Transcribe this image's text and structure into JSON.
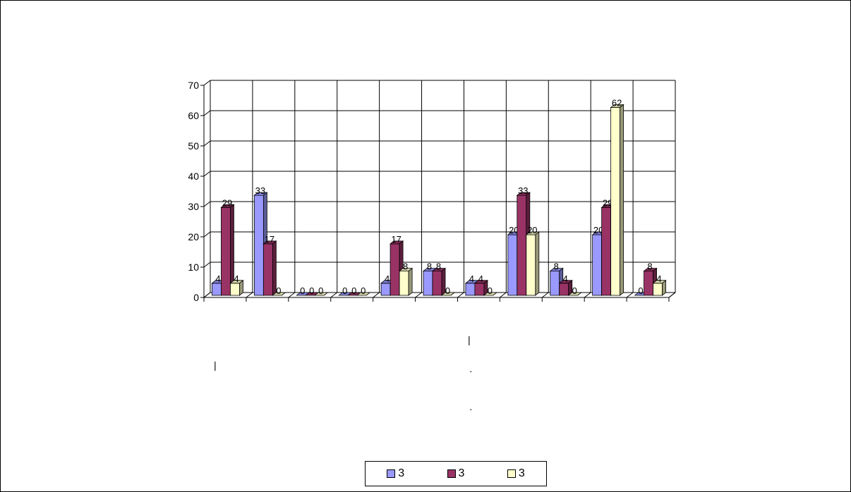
{
  "chart_data": {
    "type": "bar",
    "style": "3d-clustered-column",
    "categories": [
      "",
      "",
      "",
      "",
      "",
      "",
      "",
      "",
      "",
      "",
      ""
    ],
    "series": [
      {
        "name": "3",
        "color": "#9999ff",
        "values": [
          4,
          33,
          0,
          0,
          4,
          8,
          4,
          20,
          8,
          20,
          0
        ]
      },
      {
        "name": "3",
        "color": "#993366",
        "values": [
          29,
          17,
          0,
          0,
          17,
          8,
          4,
          33,
          4,
          29,
          8
        ]
      },
      {
        "name": "3",
        "color": "#ffffcc",
        "values": [
          4,
          0,
          0,
          0,
          8,
          0,
          0,
          20,
          0,
          62,
          4
        ]
      }
    ],
    "ylim": [
      0,
      70
    ],
    "yticks": [
      "0",
      "10",
      "20",
      "30",
      "40",
      "50",
      "60",
      "70"
    ],
    "grid": true,
    "data_labels": true,
    "legend_position": "bottom",
    "title": "",
    "xlabel": "",
    "ylabel": ""
  },
  "stray_marks": [
    "|",
    "|",
    "·",
    "·"
  ]
}
